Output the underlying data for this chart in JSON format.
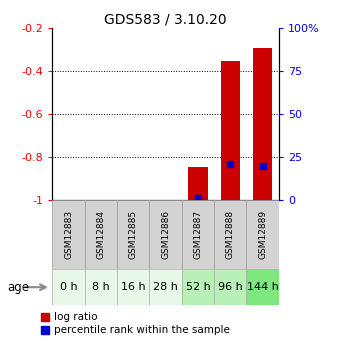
{
  "title": "GDS583 / 3.10.20",
  "samples": [
    "GSM12883",
    "GSM12884",
    "GSM12885",
    "GSM12886",
    "GSM12887",
    "GSM12888",
    "GSM12889"
  ],
  "ages": [
    "0 h",
    "8 h",
    "16 h",
    "28 h",
    "52 h",
    "96 h",
    "144 h"
  ],
  "age_colors": [
    "#e8f8e8",
    "#e8f8e8",
    "#e8f8e8",
    "#e8f8e8",
    "#b8f0b8",
    "#b8f0b8",
    "#7de87d"
  ],
  "log_ratio": [
    null,
    null,
    null,
    null,
    -0.845,
    -0.355,
    -0.295
  ],
  "percentile_rank": [
    null,
    null,
    null,
    null,
    1,
    21,
    20
  ],
  "ylim_left": [
    -1.0,
    -0.2
  ],
  "ylim_right": [
    0,
    100
  ],
  "yticks_left": [
    -1.0,
    -0.8,
    -0.6,
    -0.4,
    -0.2
  ],
  "ytick_labels_left": [
    "-1",
    "-0.8",
    "-0.6",
    "-0.4",
    "-0.2"
  ],
  "yticks_right": [
    0,
    25,
    50,
    75,
    100
  ],
  "ytick_labels_right": [
    "0",
    "25",
    "50",
    "75",
    "100%"
  ],
  "bar_color": "#cc0000",
  "dot_color": "#0000cc",
  "bar_width": 0.6,
  "legend_labels": [
    "log ratio",
    "percentile rank within the sample"
  ]
}
